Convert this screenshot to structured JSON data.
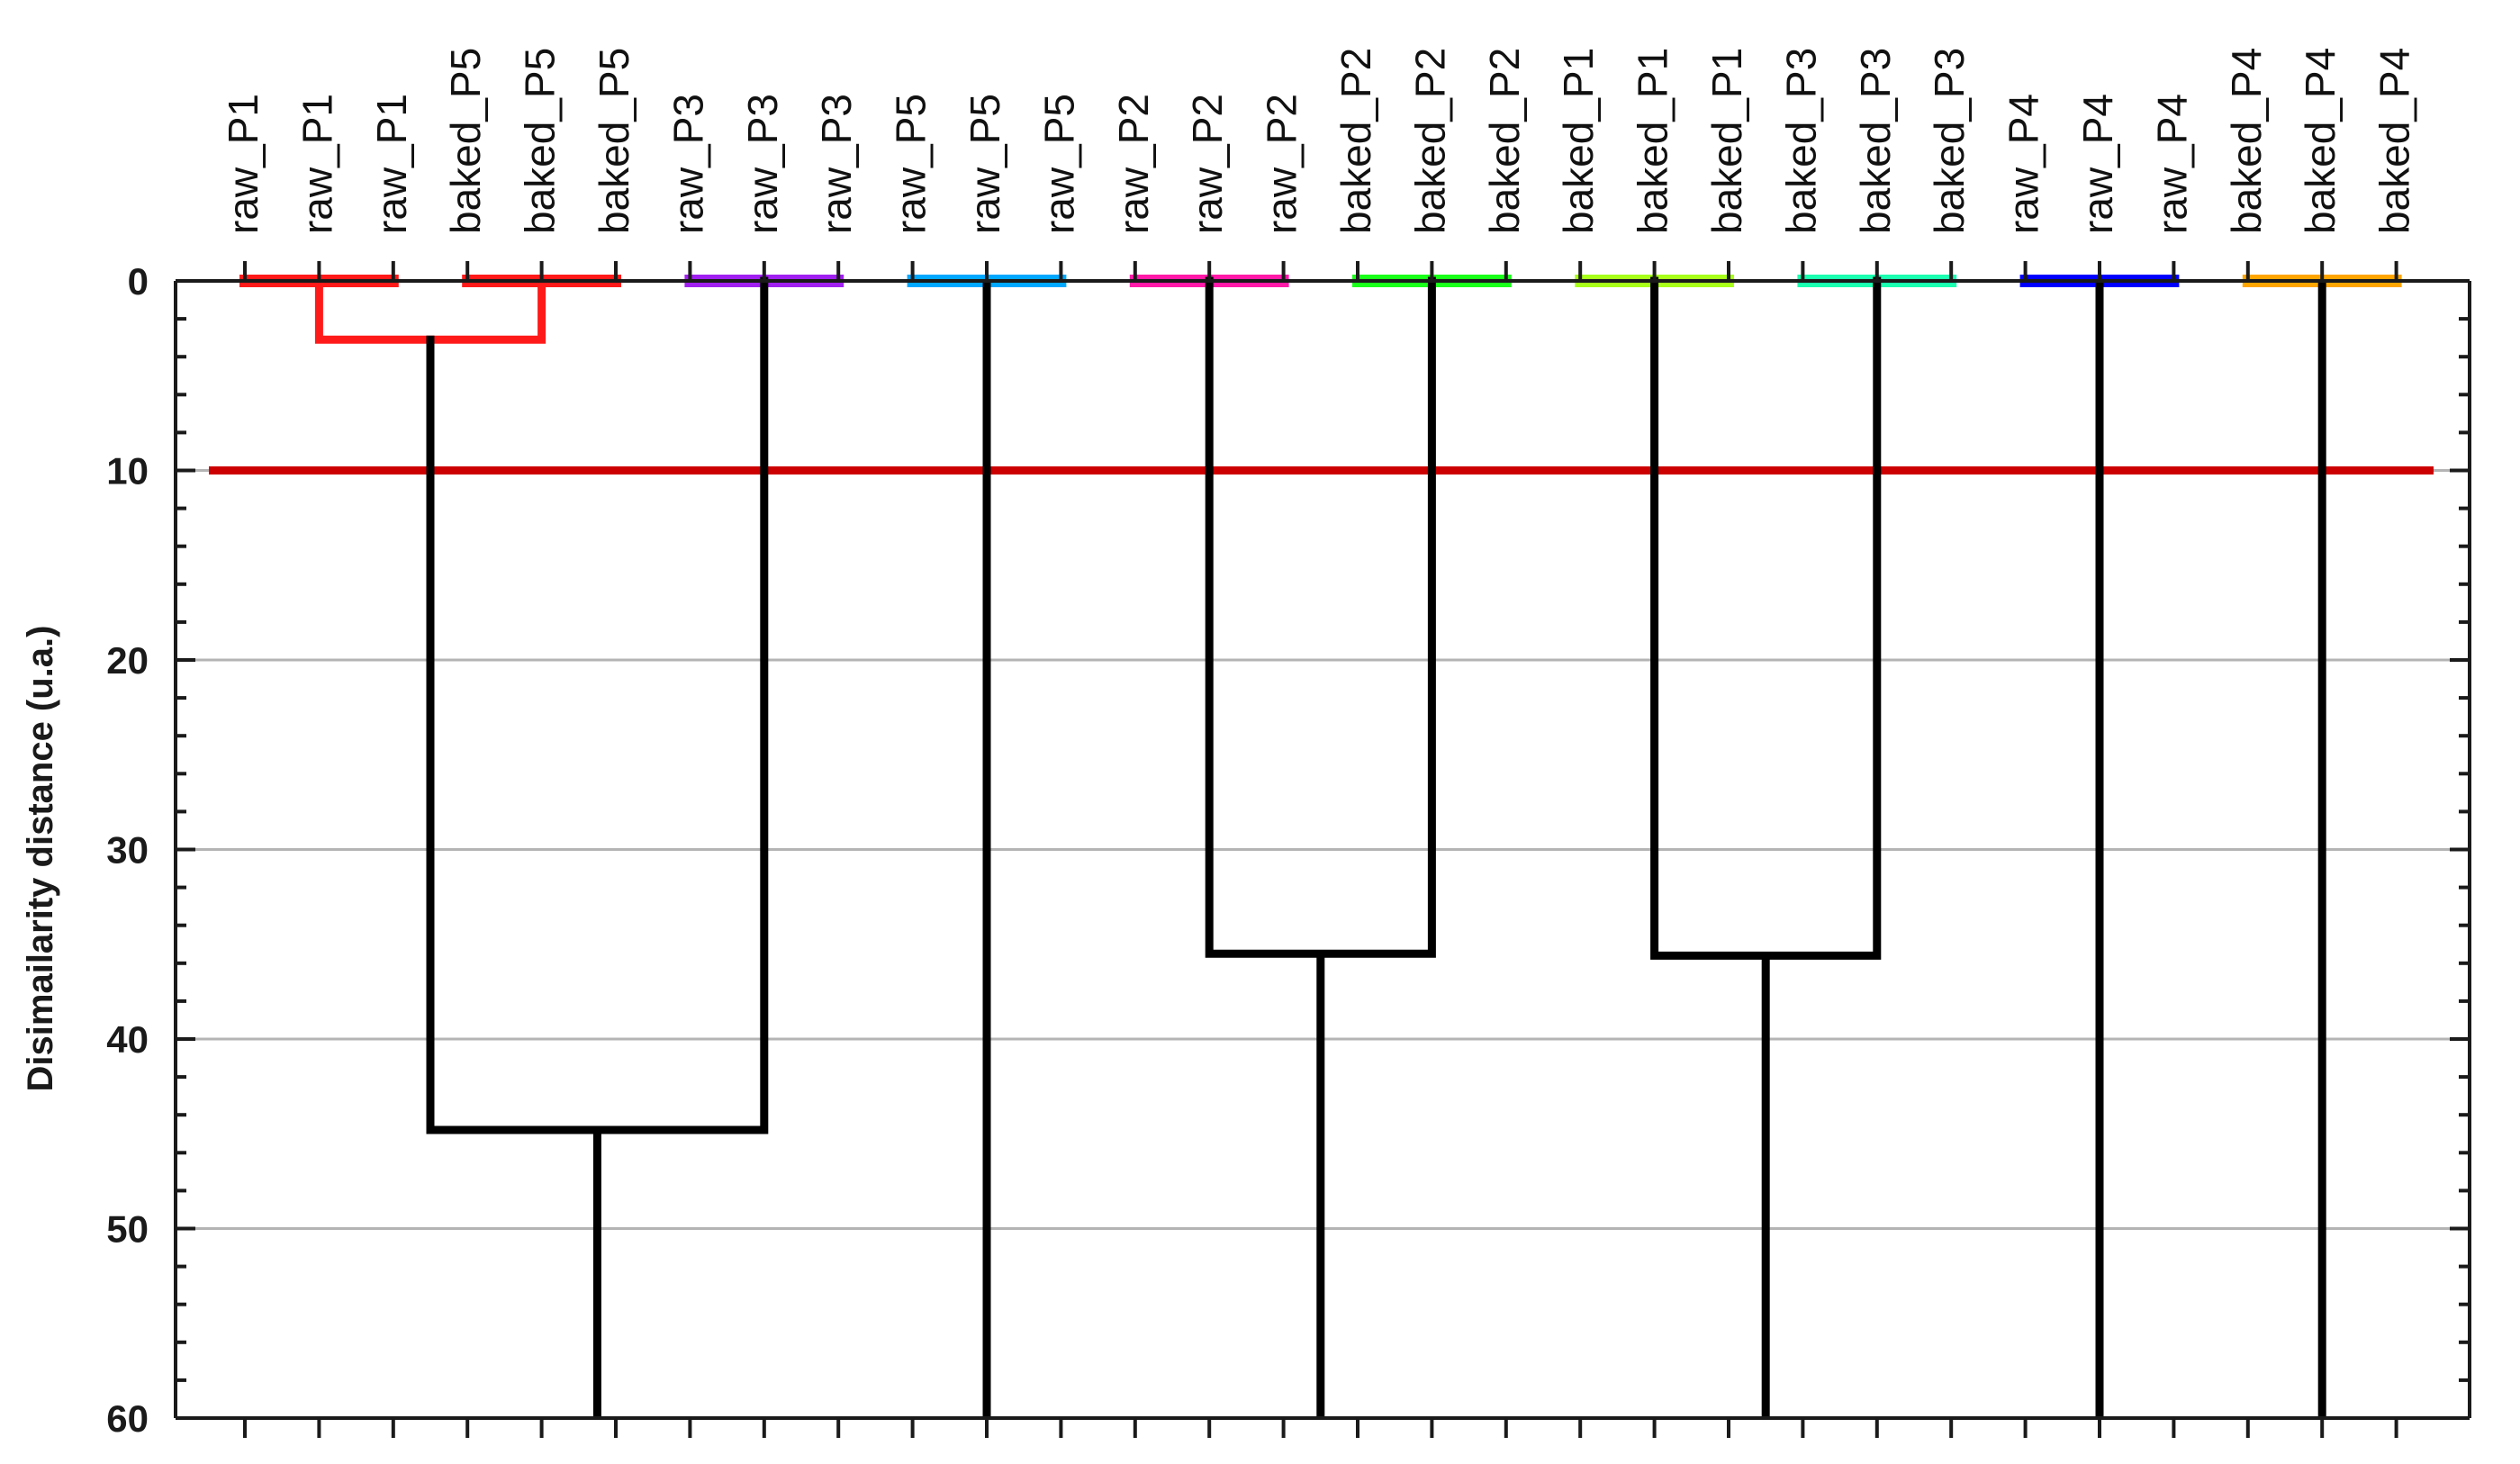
{
  "chart_data": {
    "type": "dendrogram",
    "ylabel": "Disimailarity distance (u.a.)",
    "ylim": [
      0,
      60
    ],
    "y_major_ticks": [
      0,
      10,
      20,
      30,
      40,
      50,
      60
    ],
    "y_minor_step": 2,
    "grid": true,
    "threshold": 10,
    "threshold_color": "#cc0000",
    "leaves": [
      "raw_P1",
      "raw_P1",
      "raw_P1",
      "baked_P5",
      "baked_P5",
      "baked_P5",
      "raw_P3",
      "raw_P3",
      "raw_P3",
      "raw_P5",
      "raw_P5",
      "raw_P5",
      "raw_P2",
      "raw_P2",
      "raw_P2",
      "baked_P2",
      "baked_P2",
      "baked_P2",
      "baked_P1",
      "baked_P1",
      "baked_P1",
      "baked_P3",
      "baked_P3",
      "baked_P3",
      "raw_P4",
      "raw_P4",
      "raw_P4",
      "baked_P4",
      "baked_P4",
      "baked_P4"
    ],
    "clusters": [
      {
        "name": "raw_P1",
        "leaf_start": 0,
        "leaf_end": 2,
        "color": "#ff1a1a"
      },
      {
        "name": "baked_P5",
        "leaf_start": 3,
        "leaf_end": 5,
        "color": "#ff1a1a"
      },
      {
        "name": "raw_P3",
        "leaf_start": 6,
        "leaf_end": 8,
        "color": "#a020f0"
      },
      {
        "name": "raw_P5",
        "leaf_start": 9,
        "leaf_end": 11,
        "color": "#00a8ff"
      },
      {
        "name": "raw_P2",
        "leaf_start": 12,
        "leaf_end": 14,
        "color": "#ff1aa8"
      },
      {
        "name": "baked_P2",
        "leaf_start": 15,
        "leaf_end": 17,
        "color": "#1aff1a"
      },
      {
        "name": "baked_P1",
        "leaf_start": 18,
        "leaf_end": 20,
        "color": "#a8ff1a"
      },
      {
        "name": "baked_P3",
        "leaf_start": 21,
        "leaf_end": 23,
        "color": "#1affb0"
      },
      {
        "name": "raw_P4",
        "leaf_start": 24,
        "leaf_end": 26,
        "color": "#0000ff"
      },
      {
        "name": "baked_P4",
        "leaf_start": 27,
        "leaf_end": 29,
        "color": "#ffa500"
      }
    ],
    "merges": [
      {
        "left": "raw_P1",
        "right": "baked_P5",
        "height": 3.1,
        "color": "#ff1a1a",
        "left_leaf": 1,
        "right_leaf": 4
      },
      {
        "left": "raw_P1+baked_P5",
        "right": "raw_P3",
        "height": 44.8,
        "color": "#000000",
        "left_leaf": 2.5,
        "right_leaf": 7
      },
      {
        "left": "raw_P2",
        "right": "baked_P2",
        "height": 35.5,
        "color": "#000000",
        "left_leaf": 13,
        "right_leaf": 16
      },
      {
        "left": "baked_P1",
        "right": "baked_P3",
        "height": 35.6,
        "color": "#000000",
        "left_leaf": 19,
        "right_leaf": 22
      }
    ],
    "stems": [
      {
        "leaf": 4.75,
        "from": 44.8,
        "to": 60
      },
      {
        "leaf": 10,
        "from": 0,
        "to": 60
      },
      {
        "leaf": 14.5,
        "from": 35.5,
        "to": 60
      },
      {
        "leaf": 20.5,
        "from": 35.6,
        "to": 60
      },
      {
        "leaf": 25,
        "from": 0,
        "to": 60
      },
      {
        "leaf": 28,
        "from": 0,
        "to": 60
      }
    ]
  }
}
